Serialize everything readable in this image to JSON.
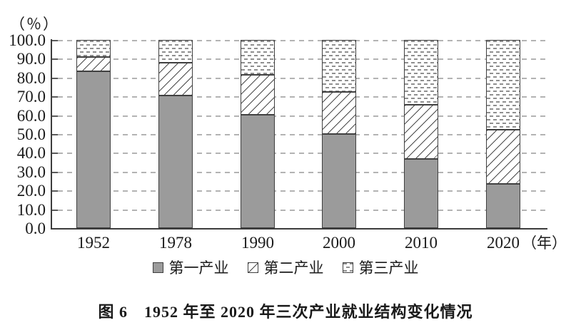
{
  "figure": {
    "unit_y_label": "（％）",
    "x_unit_suffix": "（年）",
    "caption": "图 6　1952 年至 2020 年三次产业就业结构变化情况"
  },
  "chart_data": {
    "type": "bar",
    "stacked": true,
    "title": "图6 1952年至2020年三次产业就业结构变化情况",
    "categories": [
      "1952",
      "1978",
      "1990",
      "2000",
      "2010",
      "2020"
    ],
    "series": [
      {
        "name": "第一产业",
        "pattern": "solid-gray",
        "values": [
          83.5,
          70.5,
          60.1,
          50.0,
          36.7,
          23.6
        ]
      },
      {
        "name": "第二产业",
        "pattern": "diagonal-hatch",
        "values": [
          7.4,
          17.3,
          21.4,
          22.5,
          28.7,
          28.7
        ]
      },
      {
        "name": "第三产业",
        "pattern": "horizontal-dashes",
        "values": [
          9.1,
          12.2,
          18.5,
          27.5,
          34.6,
          47.7
        ]
      }
    ],
    "ylabel": "（％）",
    "xlabel": "（年）",
    "ylim": [
      0,
      100
    ],
    "ytick_step": 10,
    "ytick_labels": [
      "0.0",
      "10.0",
      "20.0",
      "30.0",
      "40.0",
      "50.0",
      "60.0",
      "70.0",
      "80.0",
      "90.0",
      "100.0"
    ],
    "grid": "dashed-horizontal",
    "legend_position": "bottom"
  },
  "colors": {
    "primary_fill": "#9b9b9b",
    "bar_outline": "#404040",
    "gridline": "#b3b3b3",
    "axis": "#3c3c3c",
    "text": "#1a1a1a",
    "background": "#ffffff"
  }
}
